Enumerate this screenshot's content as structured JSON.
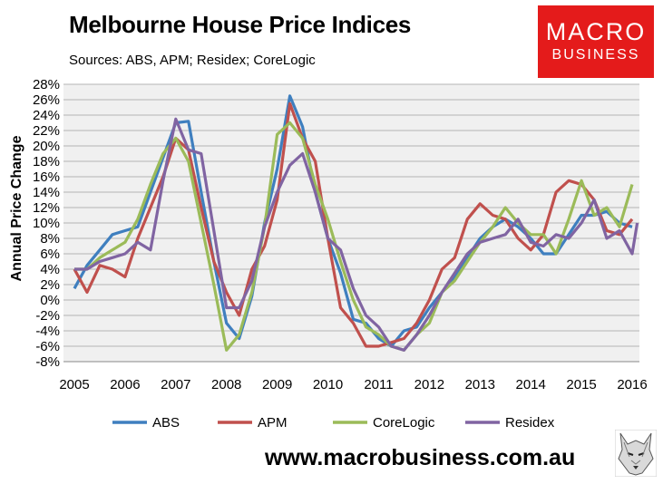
{
  "title": "Melbourne House Price Indices",
  "subtitle": "Sources: ABS, APM; Residex; CoreLogic",
  "logo": {
    "line1": "MACRO",
    "line2": "BUSINESS",
    "color": "#e41b1b"
  },
  "footer_url": "www.macrobusiness.com.au",
  "chart_data": {
    "type": "line",
    "ylabel": "Annual Price Change",
    "xlabel": "",
    "ylim": [
      -8,
      28
    ],
    "y_ticks": [
      "-8%",
      "-6%",
      "-4%",
      "-2%",
      "0%",
      "2%",
      "4%",
      "6%",
      "8%",
      "10%",
      "12%",
      "14%",
      "16%",
      "18%",
      "20%",
      "22%",
      "24%",
      "26%",
      "28%"
    ],
    "x_ticks": [
      "2005",
      "2006",
      "2007",
      "2008",
      "2009",
      "2010",
      "2011",
      "2012",
      "2013",
      "2014",
      "2015",
      "2016"
    ],
    "xlim": [
      2005,
      2016.1
    ],
    "grid": true,
    "legend_position": "bottom",
    "plot_background": "#f0f0f0",
    "series": [
      {
        "name": "ABS",
        "color": "#3f7fbf",
        "points": [
          [
            2005.0,
            1.5
          ],
          [
            2005.25,
            4.5
          ],
          [
            2005.5,
            6.5
          ],
          [
            2005.75,
            8.5
          ],
          [
            2006.0,
            9.0
          ],
          [
            2006.25,
            9.5
          ],
          [
            2006.5,
            14.0
          ],
          [
            2006.75,
            18.5
          ],
          [
            2007.0,
            23.0
          ],
          [
            2007.25,
            23.2
          ],
          [
            2007.5,
            14.0
          ],
          [
            2007.75,
            5.0
          ],
          [
            2008.0,
            -3.0
          ],
          [
            2008.25,
            -5.0
          ],
          [
            2008.5,
            0.5
          ],
          [
            2008.75,
            10.0
          ],
          [
            2009.0,
            17.0
          ],
          [
            2009.25,
            26.5
          ],
          [
            2009.5,
            22.5
          ],
          [
            2009.75,
            14.0
          ],
          [
            2010.0,
            8.0
          ],
          [
            2010.25,
            3.5
          ],
          [
            2010.5,
            -2.5
          ],
          [
            2010.75,
            -3.0
          ],
          [
            2011.0,
            -5.0
          ],
          [
            2011.25,
            -6.0
          ],
          [
            2011.5,
            -4.0
          ],
          [
            2011.75,
            -3.5
          ],
          [
            2012.0,
            -1.0
          ],
          [
            2012.25,
            1.0
          ],
          [
            2012.5,
            3.0
          ],
          [
            2012.75,
            5.5
          ],
          [
            2013.0,
            8.0
          ],
          [
            2013.25,
            9.5
          ],
          [
            2013.5,
            10.5
          ],
          [
            2013.75,
            9.5
          ],
          [
            2014.0,
            8.0
          ],
          [
            2014.25,
            6.0
          ],
          [
            2014.5,
            6.0
          ],
          [
            2014.75,
            8.5
          ],
          [
            2015.0,
            11.0
          ],
          [
            2015.25,
            11.0
          ],
          [
            2015.5,
            11.5
          ],
          [
            2015.75,
            10.0
          ],
          [
            2016.0,
            9.5
          ]
        ]
      },
      {
        "name": "APM",
        "color": "#c0504d",
        "points": [
          [
            2005.0,
            4.0
          ],
          [
            2005.25,
            1.0
          ],
          [
            2005.5,
            4.5
          ],
          [
            2005.75,
            4.0
          ],
          [
            2006.0,
            3.0
          ],
          [
            2006.25,
            8.0
          ],
          [
            2006.5,
            12.0
          ],
          [
            2006.75,
            16.0
          ],
          [
            2007.0,
            21.0
          ],
          [
            2007.25,
            19.5
          ],
          [
            2007.5,
            12.0
          ],
          [
            2007.75,
            5.0
          ],
          [
            2008.0,
            1.0
          ],
          [
            2008.25,
            -2.0
          ],
          [
            2008.5,
            4.0
          ],
          [
            2008.75,
            7.0
          ],
          [
            2009.0,
            13.0
          ],
          [
            2009.25,
            25.5
          ],
          [
            2009.5,
            21.0
          ],
          [
            2009.75,
            18.0
          ],
          [
            2010.0,
            8.0
          ],
          [
            2010.25,
            -1.0
          ],
          [
            2010.5,
            -3.0
          ],
          [
            2010.75,
            -6.0
          ],
          [
            2011.0,
            -6.0
          ],
          [
            2011.25,
            -5.5
          ],
          [
            2011.5,
            -5.0
          ],
          [
            2011.75,
            -3.0
          ],
          [
            2012.0,
            0.0
          ],
          [
            2012.25,
            4.0
          ],
          [
            2012.5,
            5.5
          ],
          [
            2012.75,
            10.5
          ],
          [
            2013.0,
            12.5
          ],
          [
            2013.25,
            11.0
          ],
          [
            2013.5,
            10.5
          ],
          [
            2013.75,
            8.0
          ],
          [
            2014.0,
            6.5
          ],
          [
            2014.25,
            8.5
          ],
          [
            2014.5,
            14.0
          ],
          [
            2014.75,
            15.5
          ],
          [
            2015.0,
            15.0
          ],
          [
            2015.25,
            13.0
          ],
          [
            2015.5,
            9.0
          ],
          [
            2015.75,
            8.5
          ],
          [
            2016.0,
            10.5
          ]
        ]
      },
      {
        "name": "CoreLogic",
        "color": "#9bbb59",
        "points": [
          [
            2005.0,
            4.0
          ],
          [
            2005.25,
            4.0
          ],
          [
            2005.5,
            5.5
          ],
          [
            2005.75,
            6.5
          ],
          [
            2006.0,
            7.5
          ],
          [
            2006.25,
            10.5
          ],
          [
            2006.5,
            15.0
          ],
          [
            2006.75,
            19.0
          ],
          [
            2007.0,
            21.0
          ],
          [
            2007.25,
            18.0
          ],
          [
            2007.5,
            10.0
          ],
          [
            2007.75,
            2.0
          ],
          [
            2008.0,
            -6.5
          ],
          [
            2008.25,
            -4.5
          ],
          [
            2008.5,
            1.0
          ],
          [
            2008.75,
            9.5
          ],
          [
            2009.0,
            21.5
          ],
          [
            2009.25,
            23.0
          ],
          [
            2009.5,
            21.0
          ],
          [
            2009.75,
            15.0
          ],
          [
            2010.0,
            10.5
          ],
          [
            2010.25,
            5.0
          ],
          [
            2010.5,
            0.0
          ],
          [
            2010.75,
            -3.5
          ],
          [
            2011.0,
            -4.5
          ],
          [
            2011.25,
            -6.0
          ],
          [
            2011.5,
            -6.5
          ],
          [
            2011.75,
            -4.5
          ],
          [
            2012.0,
            -3.0
          ],
          [
            2012.25,
            1.0
          ],
          [
            2012.5,
            2.5
          ],
          [
            2012.75,
            5.0
          ],
          [
            2013.0,
            7.5
          ],
          [
            2013.25,
            9.5
          ],
          [
            2013.5,
            12.0
          ],
          [
            2013.75,
            10.0
          ],
          [
            2014.0,
            8.5
          ],
          [
            2014.25,
            8.5
          ],
          [
            2014.5,
            6.0
          ],
          [
            2014.75,
            10.5
          ],
          [
            2015.0,
            15.5
          ],
          [
            2015.25,
            11.0
          ],
          [
            2015.5,
            12.0
          ],
          [
            2015.75,
            9.5
          ],
          [
            2016.0,
            15.0
          ]
        ]
      },
      {
        "name": "Residex",
        "color": "#8064a2",
        "points": [
          [
            2005.0,
            4.0
          ],
          [
            2005.25,
            4.0
          ],
          [
            2005.5,
            5.0
          ],
          [
            2005.75,
            5.5
          ],
          [
            2006.0,
            6.0
          ],
          [
            2006.25,
            7.5
          ],
          [
            2006.5,
            6.5
          ],
          [
            2006.75,
            15.5
          ],
          [
            2007.0,
            23.5
          ],
          [
            2007.25,
            19.5
          ],
          [
            2007.5,
            19.0
          ],
          [
            2007.75,
            9.0
          ],
          [
            2008.0,
            -1.0
          ],
          [
            2008.25,
            -1.0
          ],
          [
            2008.5,
            2.5
          ],
          [
            2008.75,
            9.5
          ],
          [
            2009.0,
            14.0
          ],
          [
            2009.25,
            17.5
          ],
          [
            2009.5,
            19.0
          ],
          [
            2009.75,
            14.0
          ],
          [
            2010.0,
            8.0
          ],
          [
            2010.25,
            6.5
          ],
          [
            2010.5,
            1.5
          ],
          [
            2010.75,
            -2.0
          ],
          [
            2011.0,
            -3.5
          ],
          [
            2011.25,
            -6.0
          ],
          [
            2011.5,
            -6.5
          ],
          [
            2011.75,
            -4.5
          ],
          [
            2012.0,
            -2.0
          ],
          [
            2012.25,
            1.0
          ],
          [
            2012.5,
            3.5
          ],
          [
            2012.75,
            6.0
          ],
          [
            2013.0,
            7.5
          ],
          [
            2013.25,
            8.0
          ],
          [
            2013.5,
            8.5
          ],
          [
            2013.75,
            10.5
          ],
          [
            2014.0,
            7.5
          ],
          [
            2014.25,
            7.0
          ],
          [
            2014.5,
            8.5
          ],
          [
            2014.75,
            8.0
          ],
          [
            2015.0,
            10.0
          ],
          [
            2015.25,
            13.0
          ],
          [
            2015.5,
            8.0
          ],
          [
            2015.75,
            9.0
          ],
          [
            2016.0,
            6.0
          ],
          [
            2016.1,
            10.0
          ]
        ]
      }
    ]
  }
}
